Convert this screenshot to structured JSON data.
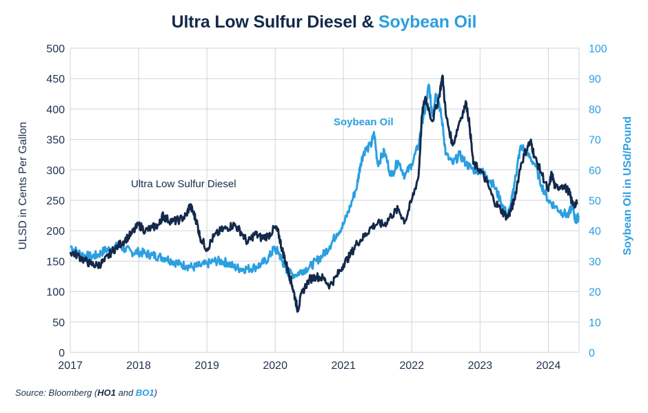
{
  "header": {
    "title_part1": "Ultra Low Sulfur Diesel & ",
    "title_part2": "Soybean Oil"
  },
  "source": {
    "prefix": "Source: Bloomberg (",
    "code1": "HO1",
    "mid": " and ",
    "code2": "BO1",
    "suffix": ")"
  },
  "colors": {
    "ulsd": "#14294a",
    "soy": "#2b9fe0",
    "grid": "#cfd3d8"
  },
  "chart_data": {
    "type": "line",
    "title": "Ultra Low Sulfur Diesel & Soybean Oil",
    "xlabel": "",
    "ylabel": "ULSD in Cents Per Gallon",
    "y2label": "Soybean Oil in USd/Pound",
    "xlim": [
      2017,
      2024.45
    ],
    "ylim": [
      0,
      500
    ],
    "y2lim": [
      0,
      100
    ],
    "x_ticks": [
      "2017",
      "2018",
      "2019",
      "2020",
      "2021",
      "2022",
      "2023",
      "2024"
    ],
    "y_ticks": [
      "0",
      "50",
      "100",
      "150",
      "200",
      "250",
      "300",
      "350",
      "400",
      "450",
      "500"
    ],
    "y2_ticks": [
      "0",
      "10",
      "20",
      "30",
      "40",
      "50",
      "60",
      "70",
      "80",
      "90",
      "100"
    ],
    "grid": "horizontal and vertical",
    "annotations": [
      "Ultra Low Sulfur Diesel",
      "Soybean Oil"
    ],
    "series": [
      {
        "name": "Ultra Low Sulfur Diesel",
        "axis": "left",
        "points": [
          [
            2017.0,
            165
          ],
          [
            2017.1,
            160
          ],
          [
            2017.2,
            152
          ],
          [
            2017.3,
            145
          ],
          [
            2017.4,
            143
          ],
          [
            2017.5,
            150
          ],
          [
            2017.6,
            165
          ],
          [
            2017.7,
            175
          ],
          [
            2017.8,
            185
          ],
          [
            2017.9,
            195
          ],
          [
            2018.0,
            210
          ],
          [
            2018.1,
            200
          ],
          [
            2018.2,
            205
          ],
          [
            2018.3,
            210
          ],
          [
            2018.35,
            225
          ],
          [
            2018.4,
            220
          ],
          [
            2018.5,
            215
          ],
          [
            2018.6,
            218
          ],
          [
            2018.7,
            225
          ],
          [
            2018.75,
            242
          ],
          [
            2018.8,
            230
          ],
          [
            2018.85,
            215
          ],
          [
            2018.9,
            190
          ],
          [
            2019.0,
            170
          ],
          [
            2019.1,
            190
          ],
          [
            2019.2,
            200
          ],
          [
            2019.3,
            205
          ],
          [
            2019.4,
            210
          ],
          [
            2019.5,
            198
          ],
          [
            2019.6,
            180
          ],
          [
            2019.7,
            195
          ],
          [
            2019.8,
            188
          ],
          [
            2019.9,
            192
          ],
          [
            2020.0,
            205
          ],
          [
            2020.05,
            195
          ],
          [
            2020.1,
            170
          ],
          [
            2020.15,
            150
          ],
          [
            2020.2,
            130
          ],
          [
            2020.25,
            110
          ],
          [
            2020.3,
            85
          ],
          [
            2020.33,
            70
          ],
          [
            2020.4,
            100
          ],
          [
            2020.5,
            120
          ],
          [
            2020.6,
            125
          ],
          [
            2020.7,
            122
          ],
          [
            2020.8,
            110
          ],
          [
            2020.9,
            125
          ],
          [
            2021.0,
            145
          ],
          [
            2021.1,
            160
          ],
          [
            2021.2,
            180
          ],
          [
            2021.3,
            190
          ],
          [
            2021.4,
            205
          ],
          [
            2021.5,
            212
          ],
          [
            2021.6,
            210
          ],
          [
            2021.7,
            225
          ],
          [
            2021.8,
            235
          ],
          [
            2021.9,
            215
          ],
          [
            2022.0,
            250
          ],
          [
            2022.1,
            290
          ],
          [
            2022.15,
            390
          ],
          [
            2022.2,
            420
          ],
          [
            2022.3,
            380
          ],
          [
            2022.4,
            420
          ],
          [
            2022.45,
            455
          ],
          [
            2022.5,
            390
          ],
          [
            2022.6,
            340
          ],
          [
            2022.7,
            380
          ],
          [
            2022.8,
            410
          ],
          [
            2022.85,
            370
          ],
          [
            2022.9,
            310
          ],
          [
            2023.0,
            300
          ],
          [
            2023.1,
            280
          ],
          [
            2023.2,
            250
          ],
          [
            2023.3,
            235
          ],
          [
            2023.4,
            222
          ],
          [
            2023.45,
            233
          ],
          [
            2023.5,
            250
          ],
          [
            2023.6,
            310
          ],
          [
            2023.7,
            340
          ],
          [
            2023.75,
            345
          ],
          [
            2023.8,
            320
          ],
          [
            2023.9,
            295
          ],
          [
            2024.0,
            265
          ],
          [
            2024.05,
            295
          ],
          [
            2024.1,
            270
          ],
          [
            2024.2,
            275
          ],
          [
            2024.3,
            265
          ],
          [
            2024.35,
            245
          ],
          [
            2024.42,
            243
          ]
        ]
      },
      {
        "name": "Soybean Oil",
        "axis": "right",
        "points": [
          [
            2017.0,
            35
          ],
          [
            2017.1,
            33
          ],
          [
            2017.2,
            32
          ],
          [
            2017.3,
            31.5
          ],
          [
            2017.4,
            32
          ],
          [
            2017.5,
            33.5
          ],
          [
            2017.6,
            34
          ],
          [
            2017.7,
            35
          ],
          [
            2017.8,
            34
          ],
          [
            2017.9,
            33
          ],
          [
            2018.0,
            33
          ],
          [
            2018.1,
            32.5
          ],
          [
            2018.2,
            32
          ],
          [
            2018.3,
            31.5
          ],
          [
            2018.4,
            31
          ],
          [
            2018.5,
            30
          ],
          [
            2018.6,
            29
          ],
          [
            2018.7,
            28.5
          ],
          [
            2018.8,
            28
          ],
          [
            2018.9,
            28.5
          ],
          [
            2019.0,
            29
          ],
          [
            2019.1,
            30
          ],
          [
            2019.2,
            30
          ],
          [
            2019.3,
            29.5
          ],
          [
            2019.4,
            28
          ],
          [
            2019.5,
            27.5
          ],
          [
            2019.6,
            27.5
          ],
          [
            2019.7,
            28
          ],
          [
            2019.8,
            29
          ],
          [
            2019.9,
            31
          ],
          [
            2019.98,
            34
          ],
          [
            2020.05,
            33
          ],
          [
            2020.1,
            30
          ],
          [
            2020.15,
            28
          ],
          [
            2020.2,
            26
          ],
          [
            2020.3,
            25.5
          ],
          [
            2020.4,
            27
          ],
          [
            2020.5,
            28
          ],
          [
            2020.6,
            30
          ],
          [
            2020.7,
            32
          ],
          [
            2020.8,
            35
          ],
          [
            2020.9,
            39
          ],
          [
            2021.0,
            42
          ],
          [
            2021.1,
            48
          ],
          [
            2021.2,
            55
          ],
          [
            2021.25,
            62
          ],
          [
            2021.3,
            66
          ],
          [
            2021.4,
            68
          ],
          [
            2021.45,
            72
          ],
          [
            2021.5,
            62
          ],
          [
            2021.6,
            66
          ],
          [
            2021.7,
            58
          ],
          [
            2021.8,
            63
          ],
          [
            2021.9,
            58
          ],
          [
            2022.0,
            62
          ],
          [
            2022.1,
            68
          ],
          [
            2022.15,
            76
          ],
          [
            2022.2,
            80
          ],
          [
            2022.25,
            88
          ],
          [
            2022.3,
            78
          ],
          [
            2022.35,
            85
          ],
          [
            2022.4,
            82
          ],
          [
            2022.45,
            75
          ],
          [
            2022.5,
            65
          ],
          [
            2022.6,
            62
          ],
          [
            2022.7,
            65
          ],
          [
            2022.8,
            62
          ],
          [
            2022.9,
            60
          ],
          [
            2023.0,
            60
          ],
          [
            2023.1,
            58
          ],
          [
            2023.2,
            55
          ],
          [
            2023.3,
            50
          ],
          [
            2023.4,
            45
          ],
          [
            2023.45,
            48
          ],
          [
            2023.5,
            55
          ],
          [
            2023.55,
            62
          ],
          [
            2023.6,
            68
          ],
          [
            2023.7,
            65
          ],
          [
            2023.8,
            62
          ],
          [
            2023.9,
            55
          ],
          [
            2024.0,
            50
          ],
          [
            2024.1,
            48
          ],
          [
            2024.2,
            46
          ],
          [
            2024.3,
            45
          ],
          [
            2024.35,
            49
          ],
          [
            2024.4,
            43
          ],
          [
            2024.45,
            45
          ]
        ]
      }
    ]
  }
}
